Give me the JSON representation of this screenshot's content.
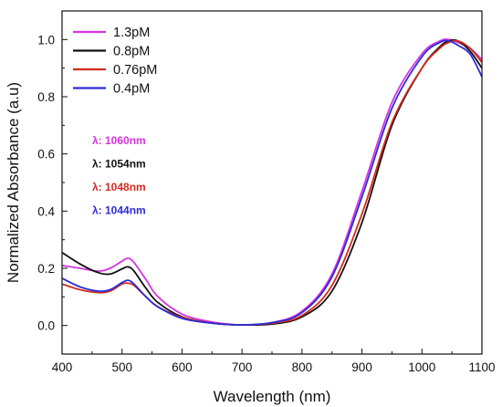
{
  "chart_data": {
    "type": "line",
    "xlabel": "Wavelength (nm)",
    "ylabel": "Normalized Absorbance (a.u)",
    "xlim": [
      400,
      1100
    ],
    "ylim": [
      -0.1,
      1.1
    ],
    "x_ticks": [
      400,
      500,
      600,
      700,
      800,
      900,
      1000,
      1100
    ],
    "y_ticks": [
      0.0,
      0.2,
      0.4,
      0.6,
      0.8,
      1.0
    ],
    "grid": false,
    "legend_position": "top-left",
    "series": [
      {
        "name": "1.3pM",
        "color": "#d633e0",
        "x": [
          400,
          430,
          460,
          480,
          500,
          510,
          520,
          540,
          560,
          600,
          650,
          700,
          750,
          800,
          850,
          900,
          950,
          1000,
          1030,
          1045,
          1060,
          1080,
          1100
        ],
        "y": [
          0.21,
          0.2,
          0.19,
          0.2,
          0.225,
          0.235,
          0.22,
          0.16,
          0.1,
          0.04,
          0.012,
          0.002,
          0.01,
          0.05,
          0.18,
          0.47,
          0.78,
          0.95,
          0.995,
          1.0,
          0.99,
          0.97,
          0.93
        ]
      },
      {
        "name": "0.8pM",
        "color": "#111111",
        "x": [
          400,
          430,
          460,
          480,
          500,
          510,
          520,
          540,
          560,
          600,
          650,
          700,
          750,
          800,
          850,
          900,
          950,
          1000,
          1030,
          1045,
          1060,
          1080,
          1100
        ],
        "y": [
          0.255,
          0.215,
          0.185,
          0.18,
          0.198,
          0.205,
          0.19,
          0.13,
          0.08,
          0.03,
          0.008,
          0.002,
          0.005,
          0.03,
          0.12,
          0.36,
          0.7,
          0.9,
          0.975,
          0.995,
          0.995,
          0.96,
          0.9
        ]
      },
      {
        "name": "0.76pM",
        "color": "#d42a1e",
        "x": [
          400,
          430,
          460,
          480,
          500,
          510,
          520,
          540,
          560,
          600,
          650,
          700,
          750,
          800,
          850,
          900,
          950,
          1000,
          1030,
          1045,
          1060,
          1080,
          1100
        ],
        "y": [
          0.145,
          0.125,
          0.115,
          0.12,
          0.145,
          0.148,
          0.14,
          0.1,
          0.065,
          0.028,
          0.008,
          0.002,
          0.008,
          0.035,
          0.14,
          0.39,
          0.71,
          0.9,
          0.97,
          0.99,
          0.995,
          0.97,
          0.92
        ]
      },
      {
        "name": "0.4pM",
        "color": "#2b2bd8",
        "x": [
          400,
          430,
          460,
          480,
          500,
          510,
          520,
          540,
          560,
          600,
          650,
          700,
          750,
          800,
          850,
          900,
          950,
          1000,
          1030,
          1045,
          1060,
          1080,
          1100
        ],
        "y": [
          0.165,
          0.135,
          0.12,
          0.125,
          0.15,
          0.158,
          0.145,
          0.1,
          0.065,
          0.025,
          0.008,
          0.002,
          0.01,
          0.045,
          0.17,
          0.45,
          0.76,
          0.94,
          0.99,
          0.995,
          0.98,
          0.95,
          0.87
        ]
      }
    ],
    "annotations": [
      {
        "text": "λ: 1060nm",
        "color": "#d633e0"
      },
      {
        "text": "λ: 1054nm",
        "color": "#111111"
      },
      {
        "text": "λ: 1048nm",
        "color": "#d42a1e"
      },
      {
        "text": "λ: 1044nm",
        "color": "#2b2bd8"
      }
    ]
  }
}
